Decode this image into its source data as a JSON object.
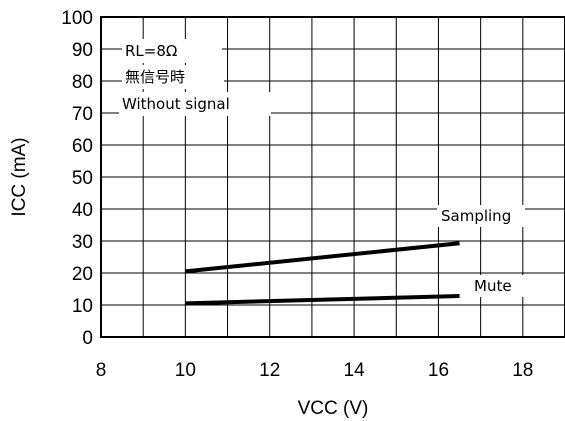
{
  "chart_data": {
    "type": "line",
    "title": "",
    "xlabel": "VCC (V)",
    "ylabel": "ICC (mA)",
    "xlim": [
      8,
      19
    ],
    "ylim": [
      0,
      100
    ],
    "x_ticks": [
      8,
      10,
      12,
      14,
      16,
      18
    ],
    "y_ticks": [
      0,
      10,
      20,
      30,
      40,
      50,
      60,
      70,
      80,
      90,
      100
    ],
    "grid": true,
    "series": [
      {
        "name": "Sampling",
        "x": [
          10,
          16.5
        ],
        "y": [
          20.5,
          29.3
        ]
      },
      {
        "name": "Mute",
        "x": [
          10,
          16.5
        ],
        "y": [
          10.5,
          12.8
        ]
      }
    ],
    "annotations": {
      "condition_rl": "RL=8Ω",
      "condition_jp": "無信号時",
      "condition_en": "Without signal"
    },
    "colors": {
      "line": "#000000",
      "grid": "#000000",
      "background": "#ffffff"
    }
  }
}
